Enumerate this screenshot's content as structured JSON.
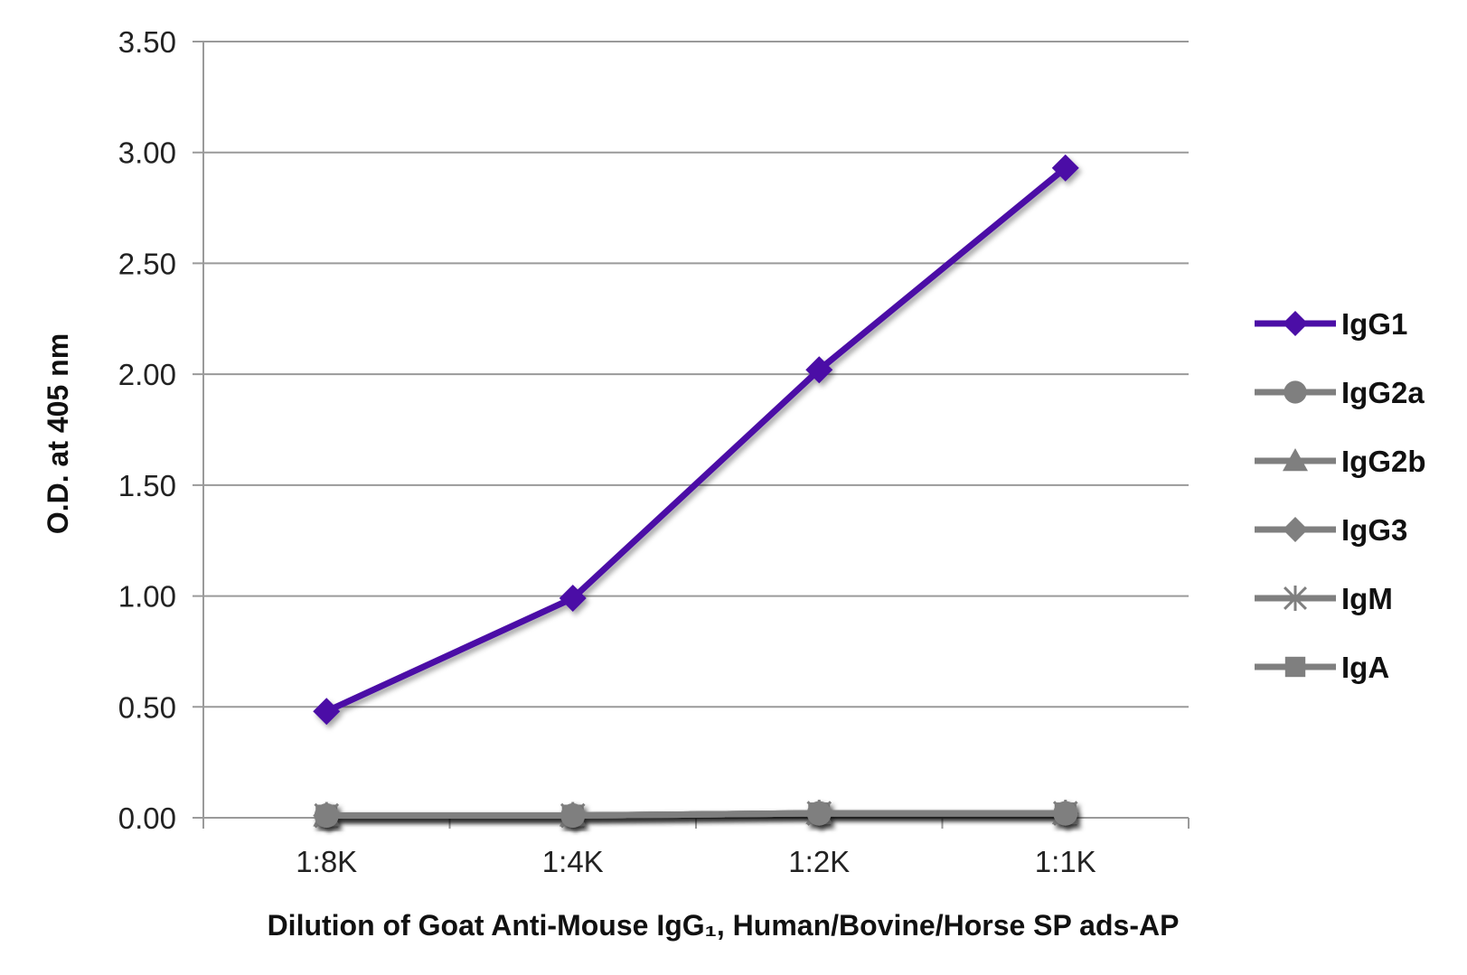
{
  "chart_data": {
    "type": "line",
    "title": "",
    "xlabel": "Dilution of Goat Anti-Mouse IgG₁, Human/Bovine/Horse SP ads-AP",
    "ylabel": "O.D. at 405 nm",
    "categories": [
      "1:8K",
      "1:4K",
      "1:2K",
      "1:1K"
    ],
    "ylim": [
      0,
      3.5
    ],
    "yticks": [
      "0.00",
      "0.50",
      "1.00",
      "1.50",
      "2.00",
      "2.50",
      "3.00",
      "3.50"
    ],
    "grid": "horizontal",
    "legend_position": "right",
    "series": [
      {
        "name": "IgG1",
        "values": [
          0.48,
          0.99,
          2.02,
          2.93
        ],
        "color": "#4B0EA6",
        "marker": "diamond"
      },
      {
        "name": "IgG2a",
        "values": [
          0.01,
          0.01,
          0.02,
          0.02
        ],
        "color": "#7F7F7F",
        "marker": "circle"
      },
      {
        "name": "IgG2b",
        "values": [
          0.01,
          0.01,
          0.02,
          0.02
        ],
        "color": "#7F7F7F",
        "marker": "triangle"
      },
      {
        "name": "IgG3",
        "values": [
          0.01,
          0.01,
          0.02,
          0.02
        ],
        "color": "#7F7F7F",
        "marker": "diamond"
      },
      {
        "name": "IgM",
        "values": [
          0.01,
          0.01,
          0.02,
          0.02
        ],
        "color": "#7F7F7F",
        "marker": "star"
      },
      {
        "name": "IgA",
        "values": [
          0.01,
          0.01,
          0.02,
          0.02
        ],
        "color": "#7F7F7F",
        "marker": "square"
      }
    ]
  }
}
